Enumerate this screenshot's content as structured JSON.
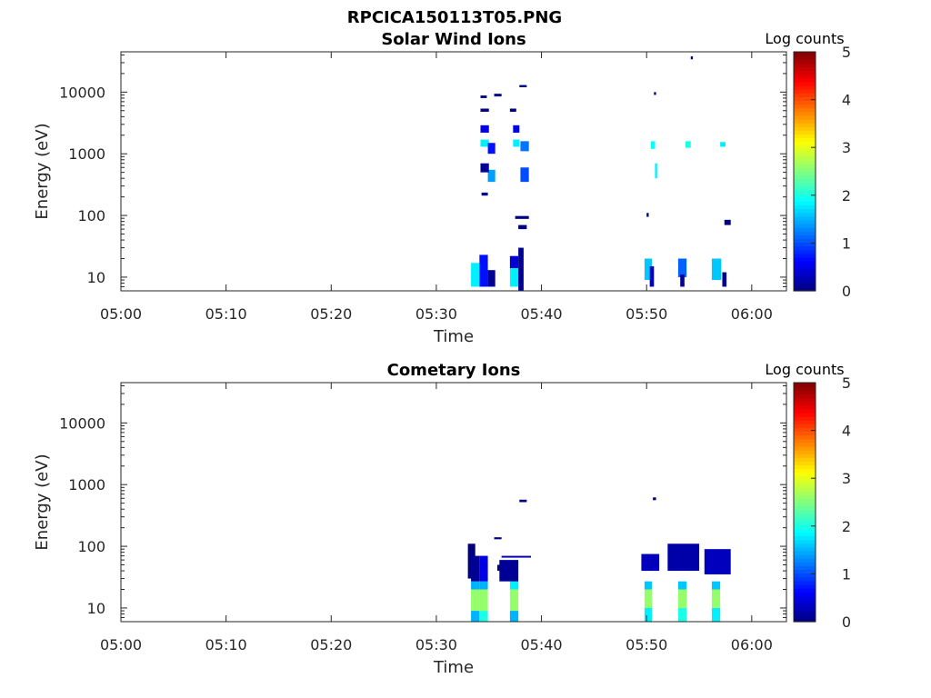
{
  "figure_title": "RPCICA150113T05.PNG",
  "colorbar": {
    "label": "Log counts",
    "ticks": [
      "0",
      "1",
      "2",
      "3",
      "4",
      "5"
    ],
    "colormap": "jet",
    "range": [
      0,
      5
    ]
  },
  "chart_data": [
    {
      "type": "heatmap",
      "title": "Solar Wind Ions",
      "xlabel": "Time",
      "ylabel": "Energy (eV)",
      "xticks": [
        "05:00",
        "05:10",
        "05:20",
        "05:30",
        "05:40",
        "05:50",
        "06:00"
      ],
      "xlim_minutes": [
        0,
        63.3
      ],
      "yticks": [
        "10",
        "100",
        "1000",
        "10000"
      ],
      "yscale": "log",
      "ylim": [
        6,
        45000
      ],
      "cells": [
        {
          "t0": 33.3,
          "t1": 34.1,
          "e0": 7,
          "e1": 17,
          "v": 1.8
        },
        {
          "t0": 34.1,
          "t1": 34.9,
          "e0": 7,
          "e1": 23,
          "v": 0.7
        },
        {
          "t0": 34.9,
          "t1": 35.6,
          "e0": 7,
          "e1": 13,
          "v": 0.1
        },
        {
          "t0": 37.0,
          "t1": 37.8,
          "e0": 7,
          "e1": 14,
          "v": 1.8
        },
        {
          "t0": 37.0,
          "t1": 37.8,
          "e0": 14,
          "e1": 22,
          "v": 0.4
        },
        {
          "t0": 37.8,
          "t1": 38.3,
          "e0": 6,
          "e1": 30,
          "v": 0.1
        },
        {
          "t0": 34.2,
          "t1": 35.0,
          "e0": 1300,
          "e1": 1700,
          "v": 1.8
        },
        {
          "t0": 34.9,
          "t1": 35.6,
          "e0": 1000,
          "e1": 1500,
          "v": 0.7
        },
        {
          "t0": 34.2,
          "t1": 35.0,
          "e0": 2200,
          "e1": 2900,
          "v": 0.5
        },
        {
          "t0": 34.9,
          "t1": 35.6,
          "e0": 350,
          "e1": 550,
          "v": 1.4
        },
        {
          "t0": 37.3,
          "t1": 37.9,
          "e0": 1300,
          "e1": 1700,
          "v": 1.8
        },
        {
          "t0": 38.0,
          "t1": 38.8,
          "e0": 1100,
          "e1": 1600,
          "v": 1.2
        },
        {
          "t0": 37.3,
          "t1": 37.9,
          "e0": 2200,
          "e1": 2900,
          "v": 0.5
        },
        {
          "t0": 38.0,
          "t1": 38.8,
          "e0": 350,
          "e1": 600,
          "v": 1.0
        },
        {
          "t0": 34.2,
          "t1": 35.0,
          "e0": 500,
          "e1": 700,
          "v": 0.1
        },
        {
          "t0": 34.2,
          "t1": 35.0,
          "e0": 4800,
          "e1": 5400,
          "v": 0.0
        },
        {
          "t0": 34.2,
          "t1": 34.8,
          "e0": 8000,
          "e1": 8800,
          "v": 0.0
        },
        {
          "t0": 35.5,
          "t1": 36.2,
          "e0": 8500,
          "e1": 9400,
          "v": 0.0
        },
        {
          "t0": 37.0,
          "t1": 37.6,
          "e0": 4800,
          "e1": 5400,
          "v": 0.0
        },
        {
          "t0": 37.9,
          "t1": 38.6,
          "e0": 12000,
          "e1": 13000,
          "v": 0.0
        },
        {
          "t0": 34.3,
          "t1": 34.9,
          "e0": 210,
          "e1": 235,
          "v": 0.0
        },
        {
          "t0": 37.5,
          "t1": 38.8,
          "e0": 88,
          "e1": 98,
          "v": 0.0
        },
        {
          "t0": 37.8,
          "t1": 38.6,
          "e0": 60,
          "e1": 70,
          "v": 0.0
        },
        {
          "t0": 49.8,
          "t1": 50.5,
          "e0": 9,
          "e1": 20,
          "v": 1.6
        },
        {
          "t0": 50.3,
          "t1": 50.7,
          "e0": 7,
          "e1": 15,
          "v": 0.3
        },
        {
          "t0": 53.0,
          "t1": 53.8,
          "e0": 10,
          "e1": 20,
          "v": 1.1
        },
        {
          "t0": 53.2,
          "t1": 53.6,
          "e0": 7,
          "e1": 11,
          "v": 0.1
        },
        {
          "t0": 56.2,
          "t1": 57.1,
          "e0": 9,
          "e1": 20,
          "v": 1.6
        },
        {
          "t0": 57.2,
          "t1": 57.6,
          "e0": 7,
          "e1": 12,
          "v": 0.1
        },
        {
          "t0": 50.4,
          "t1": 50.8,
          "e0": 1200,
          "e1": 1600,
          "v": 1.9
        },
        {
          "t0": 53.7,
          "t1": 54.2,
          "e0": 1250,
          "e1": 1600,
          "v": 2.0
        },
        {
          "t0": 57.0,
          "t1": 57.5,
          "e0": 1300,
          "e1": 1550,
          "v": 1.8
        },
        {
          "t0": 50.8,
          "t1": 51.0,
          "e0": 400,
          "e1": 700,
          "v": 1.8
        },
        {
          "t0": 50.7,
          "t1": 50.9,
          "e0": 9000,
          "e1": 10000,
          "v": 0.0
        },
        {
          "t0": 54.2,
          "t1": 54.4,
          "e0": 34000,
          "e1": 38000,
          "v": 0.0
        },
        {
          "t0": 50.0,
          "t1": 50.2,
          "e0": 95,
          "e1": 110,
          "v": 0.0
        },
        {
          "t0": 57.4,
          "t1": 58.0,
          "e0": 70,
          "e1": 85,
          "v": 0.0
        }
      ]
    },
    {
      "type": "heatmap",
      "title": "Cometary Ions",
      "xlabel": "Time",
      "ylabel": "Energy (eV)",
      "xticks": [
        "05:00",
        "05:10",
        "05:20",
        "05:30",
        "05:40",
        "05:50",
        "06:00"
      ],
      "xlim_minutes": [
        0,
        63.3
      ],
      "yticks": [
        "10",
        "100",
        "1000",
        "10000"
      ],
      "yscale": "log",
      "ylim": [
        6,
        45000
      ],
      "cells": [
        {
          "t0": 33.0,
          "t1": 33.7,
          "e0": 30,
          "e1": 110,
          "v": 0.0
        },
        {
          "t0": 33.3,
          "t1": 34.1,
          "e0": 6,
          "e1": 9,
          "v": 1.5
        },
        {
          "t0": 33.3,
          "t1": 34.1,
          "e0": 9,
          "e1": 20,
          "v": 2.6
        },
        {
          "t0": 33.3,
          "t1": 34.1,
          "e0": 20,
          "e1": 27,
          "v": 1.5
        },
        {
          "t0": 33.3,
          "t1": 34.1,
          "e0": 27,
          "e1": 70,
          "v": 0.1
        },
        {
          "t0": 34.1,
          "t1": 34.9,
          "e0": 6,
          "e1": 9,
          "v": 2.0
        },
        {
          "t0": 34.1,
          "t1": 34.9,
          "e0": 9,
          "e1": 20,
          "v": 2.6
        },
        {
          "t0": 34.1,
          "t1": 34.9,
          "e0": 20,
          "e1": 27,
          "v": 1.5
        },
        {
          "t0": 34.1,
          "t1": 34.9,
          "e0": 27,
          "e1": 70,
          "v": 0.5
        },
        {
          "t0": 35.5,
          "t1": 36.2,
          "e0": 130,
          "e1": 140,
          "v": 0.0
        },
        {
          "t0": 35.8,
          "t1": 37.0,
          "e0": 40,
          "e1": 50,
          "v": 0.0
        },
        {
          "t0": 37.0,
          "t1": 37.8,
          "e0": 6,
          "e1": 9,
          "v": 1.5
        },
        {
          "t0": 37.0,
          "t1": 37.8,
          "e0": 9,
          "e1": 20,
          "v": 2.6
        },
        {
          "t0": 37.0,
          "t1": 37.8,
          "e0": 20,
          "e1": 27,
          "v": 1.8
        },
        {
          "t0": 36.0,
          "t1": 37.8,
          "e0": 27,
          "e1": 60,
          "v": 0.1
        },
        {
          "t0": 36.2,
          "t1": 39.0,
          "e0": 66,
          "e1": 70,
          "v": 0.3
        },
        {
          "t0": 37.9,
          "t1": 38.6,
          "e0": 520,
          "e1": 570,
          "v": 0.0
        },
        {
          "t0": 49.5,
          "t1": 51.2,
          "e0": 40,
          "e1": 75,
          "v": 0.3
        },
        {
          "t0": 49.8,
          "t1": 50.5,
          "e0": 6,
          "e1": 10,
          "v": 1.8
        },
        {
          "t0": 49.8,
          "t1": 50.5,
          "e0": 10,
          "e1": 20,
          "v": 2.6
        },
        {
          "t0": 49.8,
          "t1": 50.5,
          "e0": 20,
          "e1": 27,
          "v": 1.6
        },
        {
          "t0": 50.6,
          "t1": 50.9,
          "e0": 560,
          "e1": 620,
          "v": 0.0
        },
        {
          "t0": 52.0,
          "t1": 55.0,
          "e0": 40,
          "e1": 110,
          "v": 0.2
        },
        {
          "t0": 53.0,
          "t1": 53.8,
          "e0": 6,
          "e1": 10,
          "v": 2.0
        },
        {
          "t0": 53.0,
          "t1": 53.8,
          "e0": 10,
          "e1": 20,
          "v": 2.6
        },
        {
          "t0": 53.0,
          "t1": 53.8,
          "e0": 20,
          "e1": 27,
          "v": 1.6
        },
        {
          "t0": 55.5,
          "t1": 58.0,
          "e0": 35,
          "e1": 90,
          "v": 0.3
        },
        {
          "t0": 56.2,
          "t1": 57.0,
          "e0": 6,
          "e1": 10,
          "v": 1.8
        },
        {
          "t0": 56.2,
          "t1": 57.0,
          "e0": 10,
          "e1": 20,
          "v": 2.6
        },
        {
          "t0": 56.2,
          "t1": 57.0,
          "e0": 20,
          "e1": 27,
          "v": 1.6
        }
      ]
    }
  ]
}
